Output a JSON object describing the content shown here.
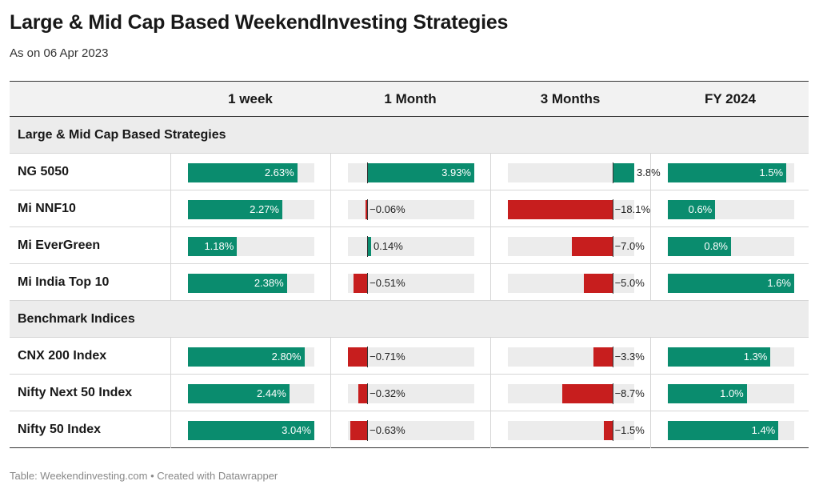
{
  "title": "Large & Mid Cap Based WeekendInvesting Strategies",
  "subtitle": "As on 06 Apr 2023",
  "footer": "Table: Weekendinvesting.com • Created with Datawrapper",
  "colors": {
    "positive": "#0a8c6e",
    "negative": "#c71e1e",
    "track": "#ececec"
  },
  "chart_data": {
    "type": "table",
    "columns": [
      "1 week",
      "1 Month",
      "3 Months",
      "FY 2024"
    ],
    "column_ranges": [
      [
        0,
        3.04
      ],
      [
        -0.71,
        3.93
      ],
      [
        -18.1,
        3.8
      ],
      [
        0,
        1.6
      ]
    ],
    "column_zero_visible": [
      false,
      true,
      true,
      false
    ],
    "sections": [
      {
        "name": "Large & Mid Cap Based Strategies",
        "rows": [
          {
            "label": "NG 5050",
            "values": [
              2.63,
              3.93,
              3.8,
              1.5
            ],
            "display": [
              "2.63%",
              "3.93%",
              "3.8%",
              "1.5%"
            ]
          },
          {
            "label": "Mi NNF10",
            "values": [
              2.27,
              -0.06,
              -18.1,
              0.6
            ],
            "display": [
              "2.27%",
              "−0.06%",
              "−18.1%",
              "0.6%"
            ]
          },
          {
            "label": "Mi EverGreen",
            "values": [
              1.18,
              0.14,
              -7.0,
              0.8
            ],
            "display": [
              "1.18%",
              "0.14%",
              "−7.0%",
              "0.8%"
            ]
          },
          {
            "label": "Mi India Top 10",
            "values": [
              2.38,
              -0.51,
              -5.0,
              1.6
            ],
            "display": [
              "2.38%",
              "−0.51%",
              "−5.0%",
              "1.6%"
            ]
          }
        ]
      },
      {
        "name": "Benchmark Indices",
        "rows": [
          {
            "label": "CNX 200 Index",
            "values": [
              2.8,
              -0.71,
              -3.3,
              1.3
            ],
            "display": [
              "2.80%",
              "−0.71%",
              "−3.3%",
              "1.3%"
            ]
          },
          {
            "label": "Nifty Next 50 Index",
            "values": [
              2.44,
              -0.32,
              -8.7,
              1.0
            ],
            "display": [
              "2.44%",
              "−0.32%",
              "−8.7%",
              "1.0%"
            ]
          },
          {
            "label": "Nifty 50 Index",
            "values": [
              3.04,
              -0.63,
              -1.5,
              1.4
            ],
            "display": [
              "3.04%",
              "−0.63%",
              "−1.5%",
              "1.4%"
            ]
          }
        ]
      }
    ]
  }
}
